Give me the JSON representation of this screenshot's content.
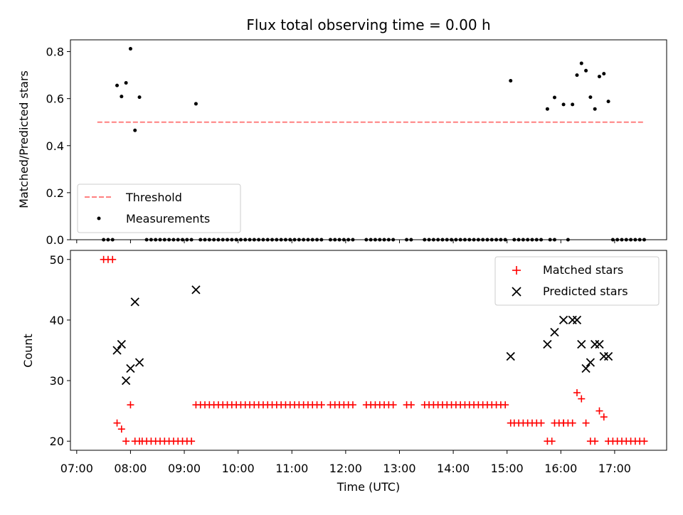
{
  "chart_data": {
    "title": "Flux total observing time = 0.00 h",
    "xlabel": "Time (UTC)",
    "x_ticks": [
      "07:00",
      "08:00",
      "09:00",
      "10:00",
      "11:00",
      "12:00",
      "13:00",
      "14:00",
      "15:00",
      "16:00",
      "17:00"
    ],
    "xlim": [
      "06:53",
      "17:58"
    ],
    "panels": [
      {
        "type": "scatter",
        "ylabel": "Matched/Predicted stars",
        "ylim": [
          0,
          0.85
        ],
        "y_ticks": [
          0.0,
          0.2,
          0.4,
          0.6,
          0.8
        ],
        "y_tick_labels": [
          "0.0",
          "0.2",
          "0.4",
          "0.6",
          "0.8"
        ],
        "legend_position": "lower-left",
        "threshold": {
          "name": "Threshold",
          "value": 0.5,
          "x_range": [
            "07:23",
            "17:33"
          ],
          "color": "#ff8080"
        },
        "series": [
          {
            "name": "Measurements",
            "color": "#000000",
            "points": [
              [
                "07:45",
                0.656
              ],
              [
                "07:50",
                0.609
              ],
              [
                "07:55",
                0.667
              ],
              [
                "08:00",
                0.812
              ],
              [
                "08:05",
                0.465
              ],
              [
                "08:10",
                0.606
              ],
              [
                "09:13",
                0.578
              ],
              [
                "15:04",
                0.676
              ],
              [
                "15:45",
                0.556
              ],
              [
                "15:53",
                0.605
              ],
              [
                "16:03",
                0.575
              ],
              [
                "16:13",
                0.575
              ],
              [
                "16:18",
                0.7
              ],
              [
                "16:23",
                0.75
              ],
              [
                "16:28",
                0.719
              ],
              [
                "16:33",
                0.606
              ],
              [
                "16:38",
                0.556
              ],
              [
                "16:43",
                0.694
              ],
              [
                "16:48",
                0.706
              ],
              [
                "16:53",
                0.588
              ]
            ],
            "zero_segments": [
              [
                "07:30",
                "07:40",
                5
              ],
              [
                "08:18",
                "09:08",
                5
              ],
              [
                "09:18",
                "11:33",
                5
              ],
              [
                "11:43",
                "12:08",
                5
              ],
              [
                "12:23",
                "12:53",
                5
              ],
              [
                "13:08",
                "13:13",
                5
              ],
              [
                "13:28",
                "14:58",
                5
              ],
              [
                "15:08",
                "15:38",
                5
              ],
              [
                "15:48",
                "15:53",
                5
              ],
              [
                "16:08",
                "16:08",
                5
              ],
              [
                "16:58",
                "17:33",
                5
              ]
            ]
          }
        ]
      },
      {
        "type": "scatter",
        "ylabel": "Count",
        "ylim": [
          18.5,
          51.5
        ],
        "y_ticks": [
          20,
          30,
          40,
          50
        ],
        "y_tick_labels": [
          "20",
          "30",
          "40",
          "50"
        ],
        "legend_position": "upper-right",
        "series": [
          {
            "name": "Matched stars",
            "marker": "plus",
            "color": "#ff0000",
            "points": [
              [
                "07:45",
                23
              ],
              [
                "07:50",
                22
              ],
              [
                "07:55",
                20
              ],
              [
                "08:00",
                26
              ],
              [
                "08:05",
                20
              ],
              [
                "08:10",
                20
              ],
              [
                "09:13",
                26
              ],
              [
                "15:04",
                23
              ],
              [
                "15:45",
                20
              ],
              [
                "15:50",
                20
              ],
              [
                "15:53",
                23
              ],
              [
                "16:03",
                23
              ],
              [
                "16:13",
                23
              ],
              [
                "16:18",
                28
              ],
              [
                "16:23",
                27
              ],
              [
                "16:28",
                23
              ],
              [
                "16:33",
                20
              ],
              [
                "16:38",
                20
              ],
              [
                "16:43",
                25
              ],
              [
                "16:48",
                24
              ],
              [
                "16:53",
                20
              ]
            ],
            "segments": [
              [
                "07:30",
                "07:40",
                5,
                50
              ],
              [
                "08:13",
                "09:08",
                5,
                20
              ],
              [
                "09:18",
                "11:33",
                5,
                26
              ],
              [
                "11:43",
                "12:08",
                5,
                26
              ],
              [
                "12:23",
                "12:53",
                5,
                26
              ],
              [
                "13:08",
                "13:13",
                5,
                26
              ],
              [
                "13:28",
                "14:58",
                5,
                26
              ],
              [
                "15:08",
                "15:38",
                5,
                23
              ],
              [
                "15:58",
                "16:08",
                5,
                23
              ],
              [
                "16:58",
                "17:33",
                5,
                20
              ]
            ]
          },
          {
            "name": "Predicted stars",
            "marker": "x",
            "color": "#000000",
            "points": [
              [
                "07:45",
                35
              ],
              [
                "07:50",
                36
              ],
              [
                "07:55",
                30
              ],
              [
                "08:00",
                32
              ],
              [
                "08:05",
                43
              ],
              [
                "08:10",
                33
              ],
              [
                "09:13",
                45
              ],
              [
                "15:04",
                34
              ],
              [
                "15:45",
                36
              ],
              [
                "15:53",
                38
              ],
              [
                "16:03",
                40
              ],
              [
                "16:13",
                40
              ],
              [
                "16:18",
                40
              ],
              [
                "16:23",
                36
              ],
              [
                "16:28",
                32
              ],
              [
                "16:33",
                33
              ],
              [
                "16:38",
                36
              ],
              [
                "16:43",
                36
              ],
              [
                "16:48",
                34
              ],
              [
                "16:53",
                34
              ]
            ]
          }
        ]
      }
    ]
  }
}
